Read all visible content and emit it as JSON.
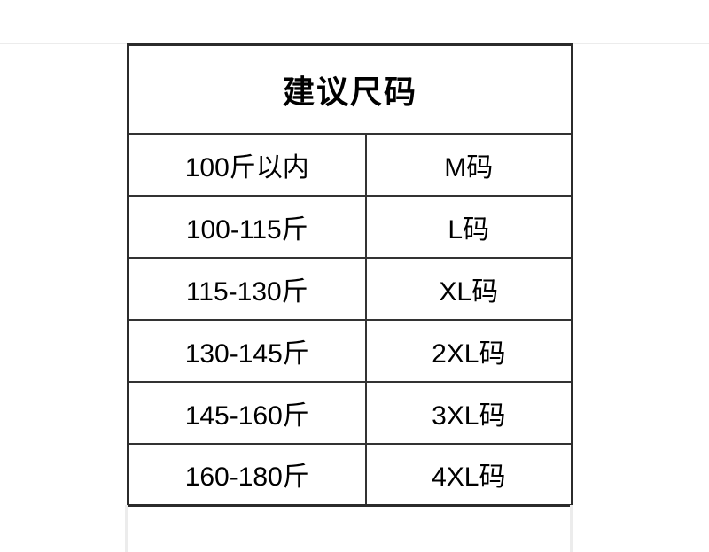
{
  "page": {
    "background_color": "#ffffff",
    "divider_color": "#ececec"
  },
  "size_chart": {
    "title": "建议尺码",
    "border_color": "#2b2b2b",
    "grid_color": "#333333",
    "text_color": "#000000",
    "rows": [
      {
        "weight": "100斤以内",
        "size": "M码"
      },
      {
        "weight": "100-115斤",
        "size": "L码"
      },
      {
        "weight": "115-130斤",
        "size": "XL码"
      },
      {
        "weight": "130-145斤",
        "size": "2XL码"
      },
      {
        "weight": "145-160斤",
        "size": "3XL码"
      },
      {
        "weight": "160-180斤",
        "size": "4XL码"
      }
    ]
  }
}
